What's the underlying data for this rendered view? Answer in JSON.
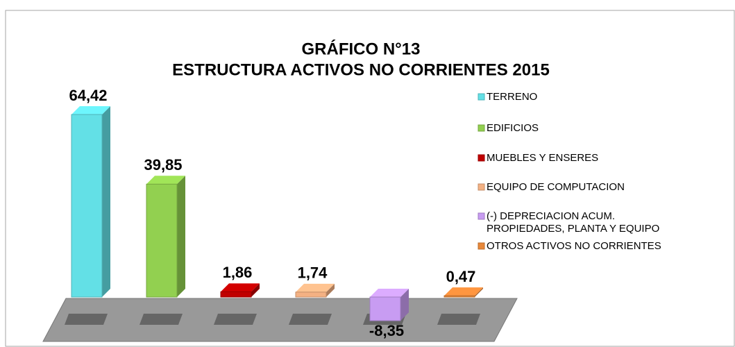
{
  "chart_data": {
    "type": "bar",
    "title": "GRÁFICO N°13",
    "subtitle": "ESTRUCTURA ACTIVOS NO CORRIENTES 2015",
    "series": [
      {
        "name": "TERRENO",
        "color": "#63e0e6",
        "values": [
          64.42
        ],
        "value_labels": [
          "64,42"
        ]
      },
      {
        "name": "EDIFICIOS",
        "color": "#92d050",
        "values": [
          39.85
        ],
        "value_labels": [
          "39,85"
        ]
      },
      {
        "name": "MUEBLES Y ENSERES",
        "color": "#c00000",
        "values": [
          1.86
        ],
        "value_labels": [
          "1,86"
        ]
      },
      {
        "name": "EQUIPO DE COMPUTACION",
        "color": "#f4b183",
        "values": [
          1.74
        ],
        "value_labels": [
          "1,74"
        ]
      },
      {
        "name": "(-)  DEPRECIACION ACUM.\nPROPIEDADES, PLANTA Y EQUIPO",
        "color": "#c89cf2",
        "values": [
          -8.35
        ],
        "value_labels": [
          "-8,35"
        ]
      },
      {
        "name": "OTROS ACTIVOS NO CORRIENTES",
        "color": "#e8883a",
        "values": [
          0.47
        ],
        "value_labels": [
          "0,47"
        ]
      }
    ]
  }
}
